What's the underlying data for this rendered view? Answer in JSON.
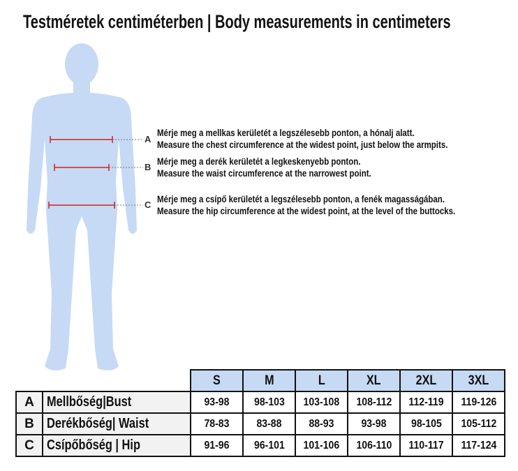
{
  "title": "Testméretek centiméterben | Body measurements in centimeters",
  "colors": {
    "body": "#c6daf5",
    "measure_line": "#d02020",
    "header_fill": "#c6daf3"
  },
  "measurements": [
    {
      "letter": "A",
      "hu": "Mérje meg a mellkas kerületét a legszélesebb ponton, a hónalj alatt.",
      "en": "Measure the chest circumference at the widest point, just below the armpits."
    },
    {
      "letter": "B",
      "hu": "Mérje meg a derék kerületét a legkeskenyebb ponton.",
      "en": "Measure the waist circumference at the narrowest point."
    },
    {
      "letter": "C",
      "hu": "Mérje meg a csípő kerületét a legszélesebb ponton, a fenék magasságában.",
      "en": "Measure the hip circumference at the widest point, at the level of the buttocks."
    }
  ],
  "table": {
    "sizes": [
      "S",
      "M",
      "L",
      "XL",
      "2XL",
      "3XL"
    ],
    "rows": [
      {
        "letter": "A",
        "name": "Mellbőség|Bust",
        "values": [
          "93-98",
          "98-103",
          "103-108",
          "108-112",
          "112-119",
          "119-126"
        ]
      },
      {
        "letter": "B",
        "name": "Derékbőség| Waist",
        "values": [
          "78-83",
          "83-88",
          "88-93",
          "93-98",
          "98-105",
          "105-112"
        ]
      },
      {
        "letter": "C",
        "name": "Csípőbőség | Hip",
        "values": [
          "91-96",
          "96-101",
          "101-106",
          "106-110",
          "110-117",
          "117-124"
        ]
      }
    ]
  }
}
